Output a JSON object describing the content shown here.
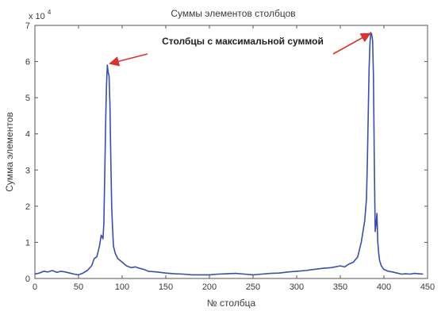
{
  "chart_data": {
    "type": "line",
    "title": "Суммы элементов столбцов",
    "xlabel": "№ столбца",
    "ylabel": "Сумма элементов",
    "y_exponent_label": "x 10",
    "y_exponent_power": "4",
    "xlim": [
      0,
      450
    ],
    "ylim": [
      0,
      7
    ],
    "x_ticks": [
      0,
      50,
      100,
      150,
      200,
      250,
      300,
      350,
      400,
      450
    ],
    "y_ticks": [
      0,
      1,
      2,
      3,
      4,
      5,
      6,
      7
    ],
    "grid": false,
    "line_color": "#3a4fa8",
    "annotation": {
      "text": "Столбцы с максимальной суммой",
      "color": "#d9342b",
      "targets": [
        [
          84,
          5.9
        ],
        [
          386,
          6.8
        ]
      ]
    },
    "series": [
      {
        "x": [
          0,
          5,
          10,
          15,
          20,
          25,
          30,
          35,
          40,
          45,
          50,
          55,
          60,
          65,
          68,
          71,
          74,
          76,
          78,
          79,
          80,
          81,
          82,
          83,
          84,
          85,
          86,
          87,
          88,
          89,
          90,
          92,
          95,
          100,
          105,
          110,
          115,
          120,
          125,
          130,
          140,
          150,
          160,
          170,
          180,
          190,
          200,
          210,
          220,
          230,
          240,
          250,
          260,
          270,
          280,
          290,
          300,
          310,
          320,
          330,
          340,
          350,
          355,
          360,
          365,
          370,
          372,
          374,
          376,
          378,
          380,
          381,
          382,
          383,
          384,
          385,
          386,
          387,
          388,
          389,
          390,
          391,
          392,
          393,
          394,
          395,
          397,
          400,
          405,
          410,
          415,
          420,
          425,
          430,
          435,
          440,
          445
        ],
        "y": [
          0.12,
          0.15,
          0.2,
          0.18,
          0.22,
          0.17,
          0.2,
          0.18,
          0.15,
          0.12,
          0.1,
          0.15,
          0.22,
          0.35,
          0.55,
          0.6,
          0.9,
          1.2,
          1.1,
          1.5,
          2.8,
          4.2,
          5.3,
          5.9,
          5.7,
          5.6,
          4.8,
          3.3,
          2.0,
          1.4,
          0.9,
          0.7,
          0.55,
          0.45,
          0.35,
          0.3,
          0.32,
          0.28,
          0.25,
          0.2,
          0.18,
          0.15,
          0.13,
          0.12,
          0.1,
          0.1,
          0.1,
          0.12,
          0.13,
          0.14,
          0.12,
          0.1,
          0.12,
          0.14,
          0.15,
          0.18,
          0.2,
          0.22,
          0.25,
          0.28,
          0.3,
          0.35,
          0.32,
          0.4,
          0.45,
          0.6,
          0.8,
          1.0,
          1.3,
          1.6,
          2.2,
          3.2,
          4.5,
          5.8,
          6.5,
          6.8,
          6.75,
          6.6,
          5.6,
          3.2,
          1.3,
          1.5,
          1.8,
          1.0,
          0.7,
          0.5,
          0.35,
          0.25,
          0.2,
          0.18,
          0.15,
          0.12,
          0.13,
          0.12,
          0.14,
          0.13,
          0.12
        ]
      }
    ]
  }
}
